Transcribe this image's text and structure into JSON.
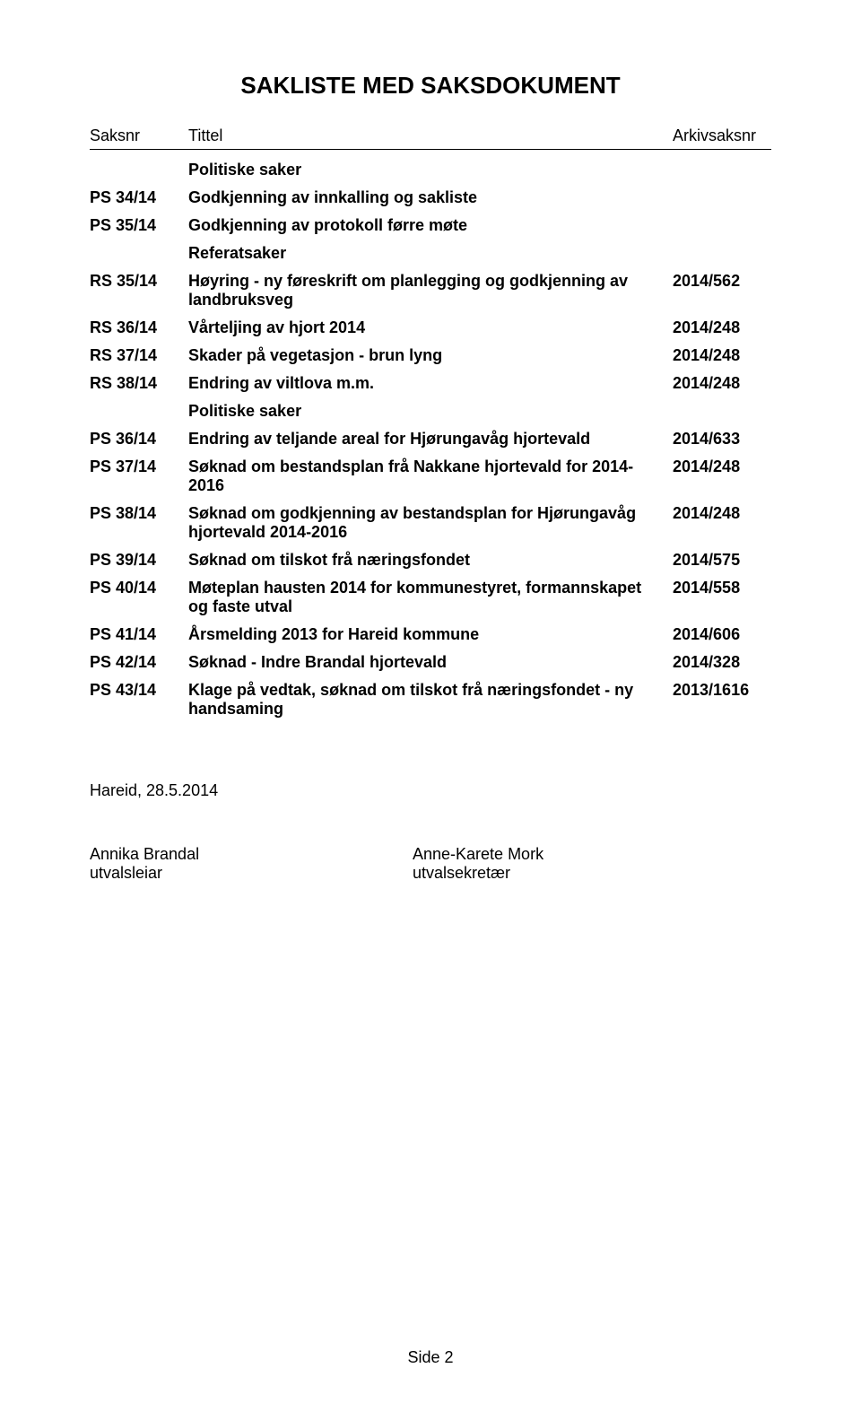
{
  "title": "SAKLISTE MED SAKSDOKUMENT",
  "headers": {
    "saksnr": "Saksnr",
    "tittel": "Tittel",
    "arkiv": "Arkivsaksnr"
  },
  "section1": "Politiske saker",
  "rows1": [
    {
      "saksnr": "PS 34/14",
      "tittel": "Godkjenning av innkalling og sakliste",
      "arkiv": ""
    },
    {
      "saksnr": "PS 35/14",
      "tittel": "Godkjenning av protokoll førre møte",
      "arkiv": ""
    }
  ],
  "section2": "Referatsaker",
  "rows2": [
    {
      "saksnr": "RS 35/14",
      "tittel": "Høyring - ny føreskrift om planlegging og godkjenning av landbruksveg",
      "arkiv": "2014/562"
    },
    {
      "saksnr": "RS 36/14",
      "tittel": "Vårteljing av hjort 2014",
      "arkiv": "2014/248"
    },
    {
      "saksnr": "RS 37/14",
      "tittel": "Skader på vegetasjon - brun lyng",
      "arkiv": "2014/248"
    },
    {
      "saksnr": "RS 38/14",
      "tittel": "Endring av viltlova m.m.",
      "arkiv": "2014/248"
    }
  ],
  "section3": "Politiske saker",
  "rows3": [
    {
      "saksnr": "PS 36/14",
      "tittel": "Endring av teljande areal for Hjørungavåg hjortevald",
      "arkiv": "2014/633"
    },
    {
      "saksnr": "PS 37/14",
      "tittel": "Søknad om bestandsplan frå Nakkane hjortevald for 2014-2016",
      "arkiv": "2014/248"
    },
    {
      "saksnr": "PS 38/14",
      "tittel": "Søknad om godkjenning av bestandsplan for Hjørungavåg hjortevald 2014-2016",
      "arkiv": "2014/248"
    },
    {
      "saksnr": "PS 39/14",
      "tittel": "Søknad om tilskot frå næringsfondet",
      "arkiv": "2014/575"
    },
    {
      "saksnr": "PS 40/14",
      "tittel": "Møteplan hausten 2014 for kommunestyret, formannskapet og faste utval",
      "arkiv": "2014/558"
    },
    {
      "saksnr": "PS 41/14",
      "tittel": "Årsmelding 2013 for Hareid kommune",
      "arkiv": "2014/606"
    },
    {
      "saksnr": "PS 42/14",
      "tittel": "Søknad - Indre Brandal hjortevald",
      "arkiv": "2014/328"
    },
    {
      "saksnr": "PS 43/14",
      "tittel": "Klage på vedtak, søknad om tilskot frå næringsfondet - ny handsaming",
      "arkiv": "2013/1616"
    }
  ],
  "footer_date": "Hareid, 28.5.2014",
  "sign_left_name": "Annika Brandal",
  "sign_left_role": "utvalsleiar",
  "sign_right_name": "Anne-Karete Mork",
  "sign_right_role": "utvalsekretær",
  "page_num": "Side 2"
}
